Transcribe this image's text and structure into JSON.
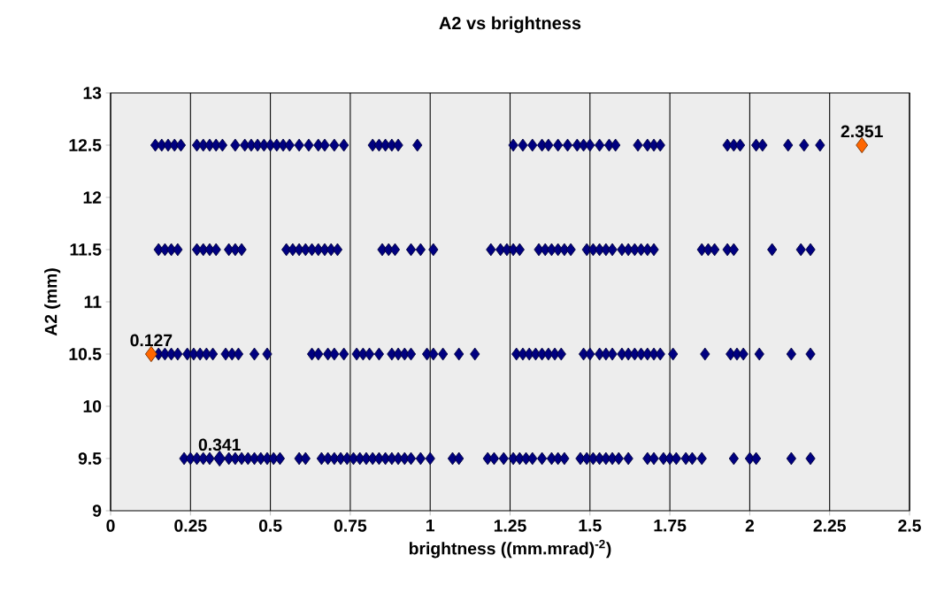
{
  "chart_data": {
    "type": "scatter",
    "title": "A2 vs brightness",
    "xlabel": "brightness ((mm.mrad)$^{-2}$)",
    "ylabel": "A2 (mm)",
    "xlim": [
      0,
      2.5
    ],
    "ylim": [
      9,
      13
    ],
    "xticks": [
      0,
      0.25,
      0.5,
      0.75,
      1,
      1.25,
      1.5,
      1.75,
      2,
      2.25,
      2.5
    ],
    "yticks": [
      9,
      9.5,
      10,
      10.5,
      11,
      11.5,
      12,
      12.5,
      13
    ],
    "grid": "x",
    "marker": "diamond",
    "series": [
      {
        "color": "#000080",
        "x": [
          0.14,
          0.16,
          0.18,
          0.2,
          0.22,
          0.27,
          0.29,
          0.31,
          0.33,
          0.35,
          0.39,
          0.42,
          0.44,
          0.46,
          0.48,
          0.5,
          0.52,
          0.54,
          0.56,
          0.59,
          0.62,
          0.65,
          0.67,
          0.7,
          0.73,
          0.82,
          0.84,
          0.86,
          0.88,
          0.9,
          0.96,
          1.26,
          1.29,
          1.32,
          1.35,
          1.37,
          1.4,
          1.43,
          1.46,
          1.48,
          1.5,
          1.53,
          1.56,
          1.58,
          1.65,
          1.68,
          1.7,
          1.72,
          1.93,
          1.95,
          1.97,
          2.02,
          2.04,
          2.12,
          2.17,
          2.22,
          0.15,
          0.17,
          0.19,
          0.21,
          0.27,
          0.29,
          0.31,
          0.33,
          0.37,
          0.39,
          0.41,
          0.55,
          0.57,
          0.59,
          0.61,
          0.63,
          0.65,
          0.67,
          0.69,
          0.71,
          0.85,
          0.87,
          0.89,
          0.94,
          0.97,
          1.01,
          1.19,
          1.22,
          1.24,
          1.26,
          1.28,
          1.34,
          1.36,
          1.38,
          1.4,
          1.42,
          1.44,
          1.49,
          1.51,
          1.53,
          1.55,
          1.57,
          1.6,
          1.62,
          1.64,
          1.66,
          1.68,
          1.7,
          1.85,
          1.87,
          1.89,
          1.93,
          1.95,
          2.07,
          2.16,
          2.19,
          0.15,
          0.17,
          0.19,
          0.21,
          0.24,
          0.26,
          0.28,
          0.3,
          0.32,
          0.36,
          0.38,
          0.4,
          0.45,
          0.49,
          0.63,
          0.65,
          0.68,
          0.7,
          0.73,
          0.77,
          0.79,
          0.81,
          0.84,
          0.88,
          0.9,
          0.92,
          0.94,
          0.99,
          1.01,
          1.04,
          1.09,
          1.14,
          1.27,
          1.29,
          1.31,
          1.33,
          1.35,
          1.37,
          1.39,
          1.41,
          1.48,
          1.5,
          1.53,
          1.55,
          1.57,
          1.6,
          1.62,
          1.64,
          1.66,
          1.68,
          1.7,
          1.72,
          1.76,
          1.86,
          1.94,
          1.96,
          1.98,
          2.03,
          2.13,
          2.19,
          0.23,
          0.25,
          0.27,
          0.29,
          0.31,
          0.37,
          0.39,
          0.41,
          0.43,
          0.45,
          0.47,
          0.49,
          0.51,
          0.53,
          0.59,
          0.61,
          0.66,
          0.68,
          0.7,
          0.72,
          0.74,
          0.76,
          0.78,
          0.8,
          0.82,
          0.84,
          0.86,
          0.88,
          0.9,
          0.92,
          0.94,
          0.97,
          1.0,
          1.07,
          1.09,
          1.18,
          1.2,
          1.23,
          1.26,
          1.28,
          1.3,
          1.32,
          1.35,
          1.38,
          1.4,
          1.42,
          1.47,
          1.49,
          1.51,
          1.53,
          1.55,
          1.57,
          1.59,
          1.62,
          1.68,
          1.7,
          1.73,
          1.75,
          1.77,
          1.8,
          1.82,
          1.85,
          1.95,
          2.0,
          2.02,
          2.13,
          2.19
        ],
        "values": [
          12.5,
          12.5,
          12.5,
          12.5,
          12.5,
          12.5,
          12.5,
          12.5,
          12.5,
          12.5,
          12.5,
          12.5,
          12.5,
          12.5,
          12.5,
          12.5,
          12.5,
          12.5,
          12.5,
          12.5,
          12.5,
          12.5,
          12.5,
          12.5,
          12.5,
          12.5,
          12.5,
          12.5,
          12.5,
          12.5,
          12.5,
          12.5,
          12.5,
          12.5,
          12.5,
          12.5,
          12.5,
          12.5,
          12.5,
          12.5,
          12.5,
          12.5,
          12.5,
          12.5,
          12.5,
          12.5,
          12.5,
          12.5,
          12.5,
          12.5,
          12.5,
          12.5,
          12.5,
          12.5,
          12.5,
          12.5,
          11.5,
          11.5,
          11.5,
          11.5,
          11.5,
          11.5,
          11.5,
          11.5,
          11.5,
          11.5,
          11.5,
          11.5,
          11.5,
          11.5,
          11.5,
          11.5,
          11.5,
          11.5,
          11.5,
          11.5,
          11.5,
          11.5,
          11.5,
          11.5,
          11.5,
          11.5,
          11.5,
          11.5,
          11.5,
          11.5,
          11.5,
          11.5,
          11.5,
          11.5,
          11.5,
          11.5,
          11.5,
          11.5,
          11.5,
          11.5,
          11.5,
          11.5,
          11.5,
          11.5,
          11.5,
          11.5,
          11.5,
          11.5,
          11.5,
          11.5,
          11.5,
          11.5,
          11.5,
          11.5,
          11.5,
          11.5,
          10.5,
          10.5,
          10.5,
          10.5,
          10.5,
          10.5,
          10.5,
          10.5,
          10.5,
          10.5,
          10.5,
          10.5,
          10.5,
          10.5,
          10.5,
          10.5,
          10.5,
          10.5,
          10.5,
          10.5,
          10.5,
          10.5,
          10.5,
          10.5,
          10.5,
          10.5,
          10.5,
          10.5,
          10.5,
          10.5,
          10.5,
          10.5,
          10.5,
          10.5,
          10.5,
          10.5,
          10.5,
          10.5,
          10.5,
          10.5,
          10.5,
          10.5,
          10.5,
          10.5,
          10.5,
          10.5,
          10.5,
          10.5,
          10.5,
          10.5,
          10.5,
          10.5,
          10.5,
          10.5,
          10.5,
          10.5,
          10.5,
          10.5,
          10.5,
          10.5,
          9.5,
          9.5,
          9.5,
          9.5,
          9.5,
          9.5,
          9.5,
          9.5,
          9.5,
          9.5,
          9.5,
          9.5,
          9.5,
          9.5,
          9.5,
          9.5,
          9.5,
          9.5,
          9.5,
          9.5,
          9.5,
          9.5,
          9.5,
          9.5,
          9.5,
          9.5,
          9.5,
          9.5,
          9.5,
          9.5,
          9.5,
          9.5,
          9.5,
          9.5,
          9.5,
          9.5,
          9.5,
          9.5,
          9.5,
          9.5,
          9.5,
          9.5,
          9.5,
          9.5,
          9.5,
          9.5,
          9.5,
          9.5,
          9.5,
          9.5,
          9.5,
          9.5,
          9.5,
          9.5,
          9.5,
          9.5,
          9.5,
          9.5,
          9.5,
          9.5,
          9.5,
          9.5,
          9.5,
          9.5,
          9.5,
          9.5,
          9.5
        ]
      },
      {
        "color": "#ff6600",
        "x": [
          0.127,
          2.351
        ],
        "values": [
          10.5,
          12.5
        ]
      },
      {
        "color": "#000080",
        "x": [
          0.341
        ],
        "values": [
          9.5
        ]
      }
    ],
    "annotations": [
      {
        "text": "0.127",
        "x": 0.127,
        "y": 10.5
      },
      {
        "text": "2.351",
        "x": 2.351,
        "y": 12.5
      },
      {
        "text": "0.341",
        "x": 0.341,
        "y": 9.5
      }
    ]
  }
}
